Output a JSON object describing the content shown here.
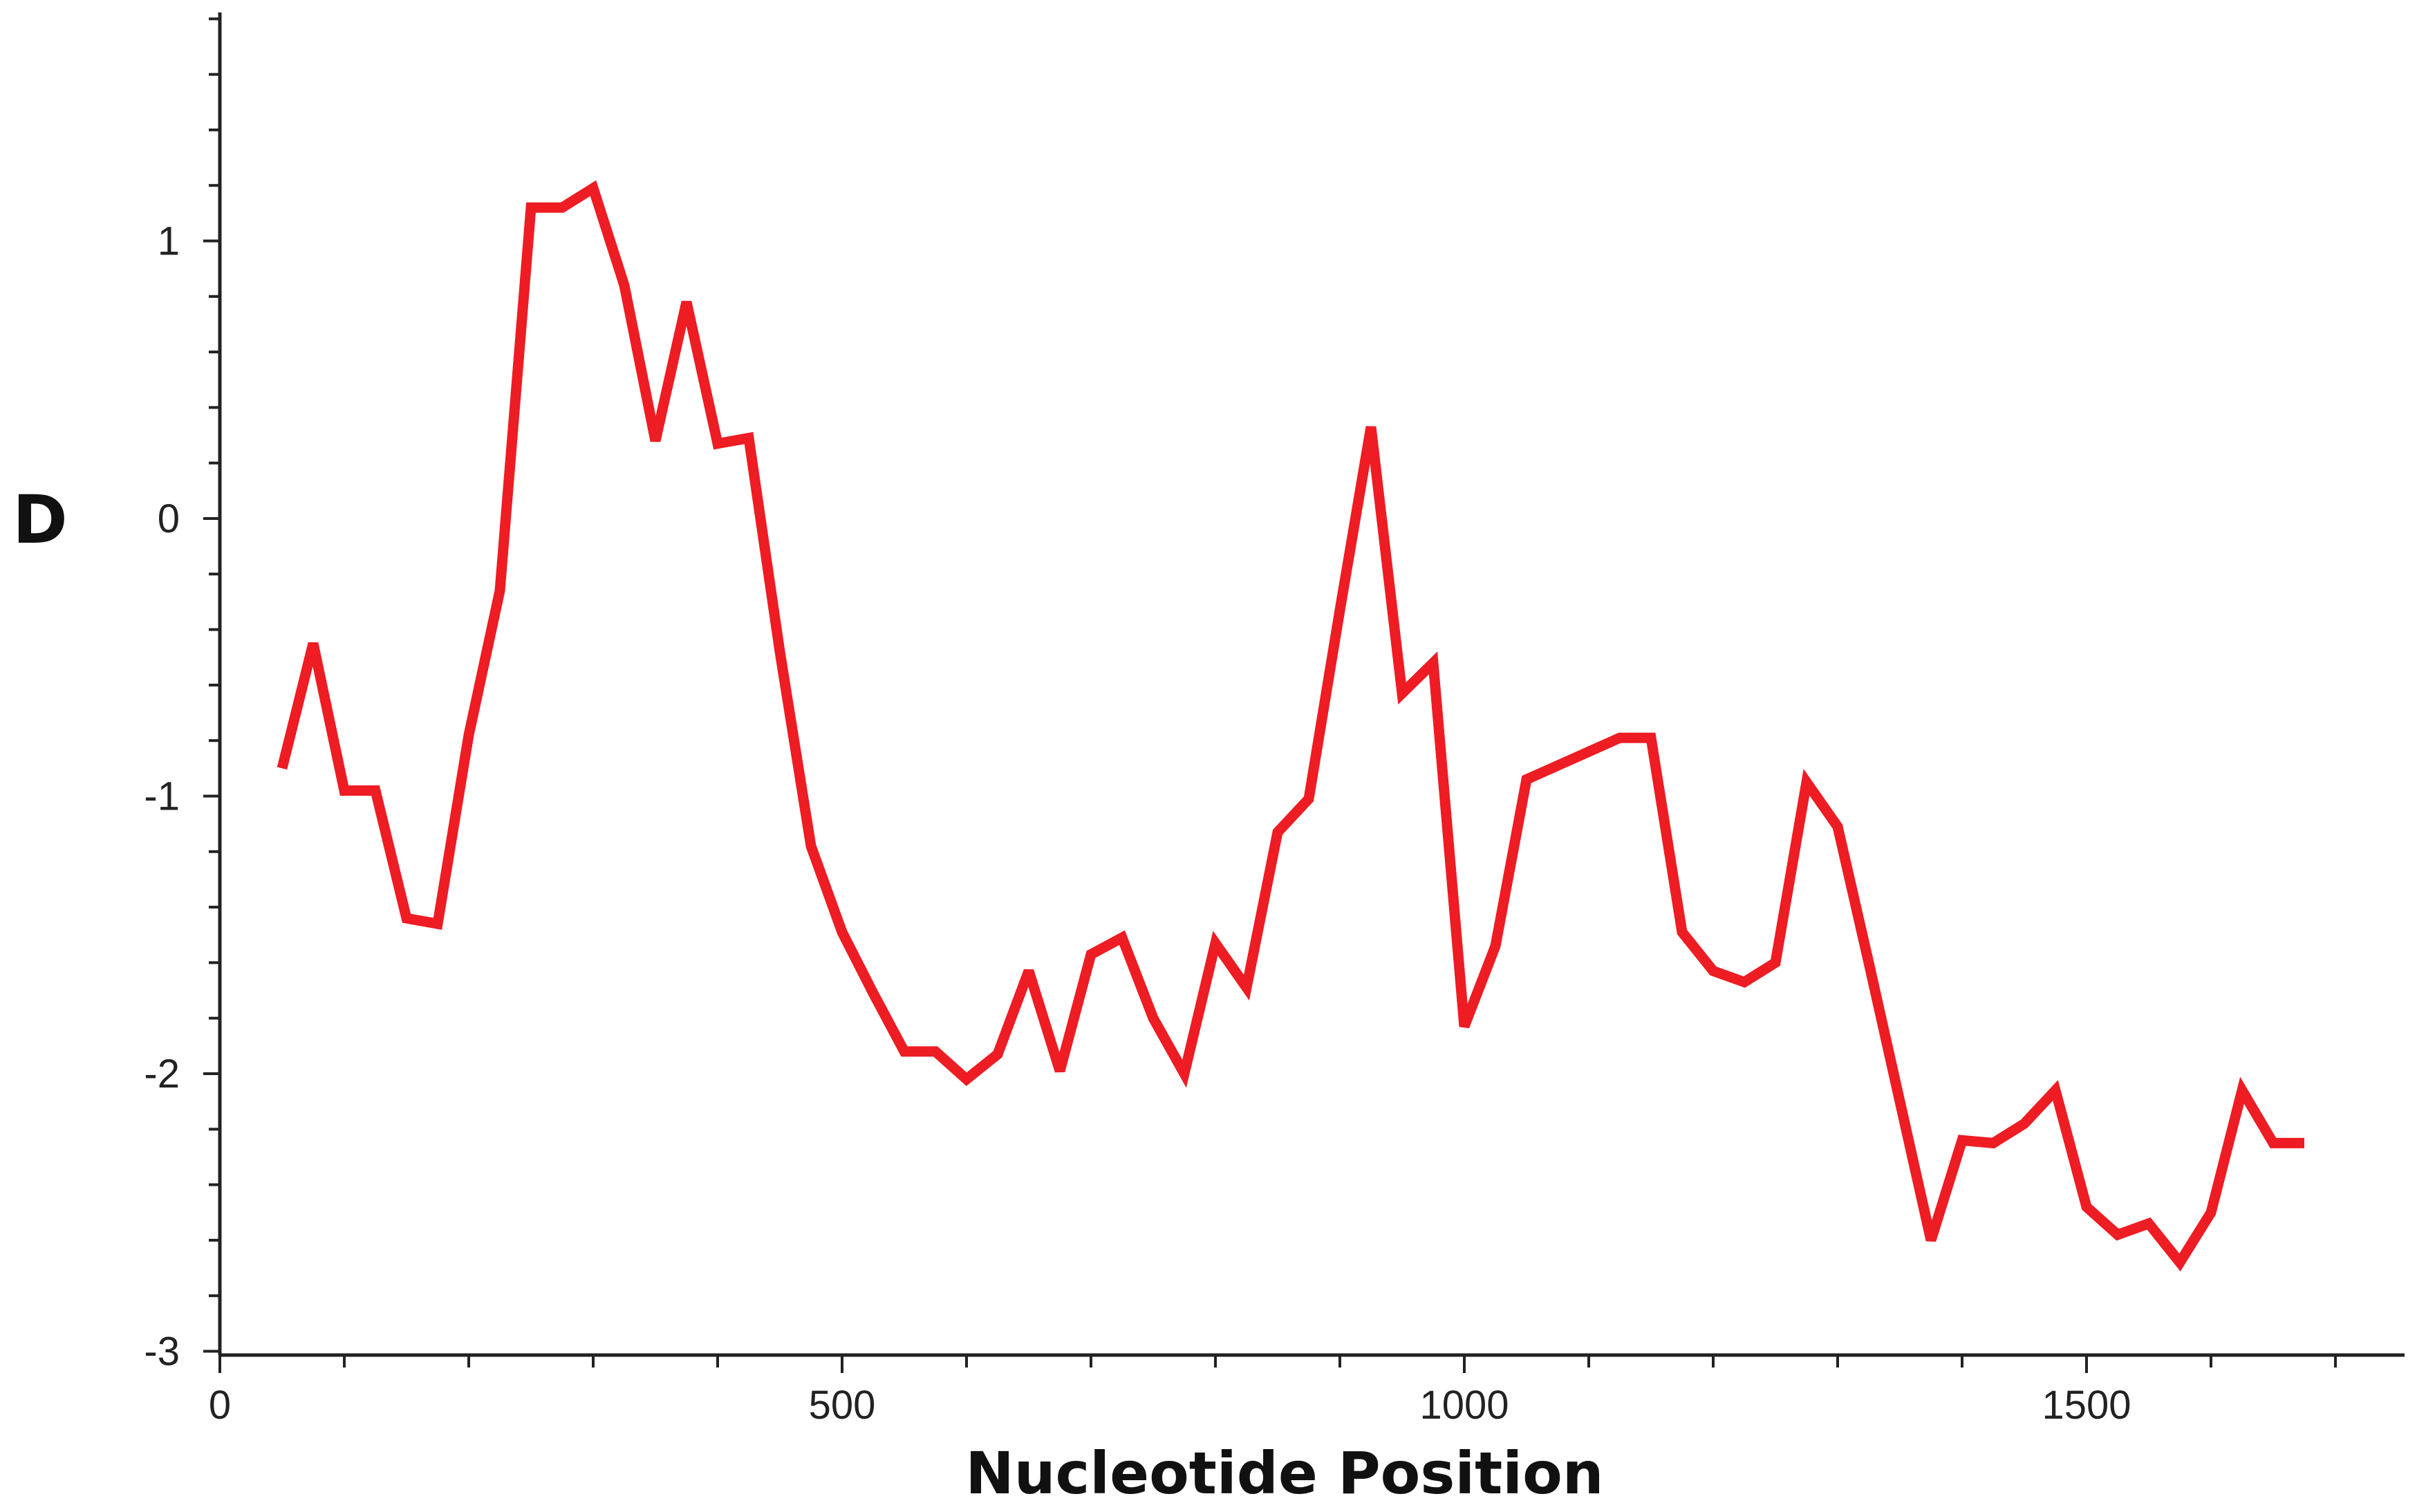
{
  "chart_data": {
    "type": "line",
    "title": "",
    "xlabel": "Nucleotide Position",
    "ylabel": "D",
    "xlim": [
      0,
      1760
    ],
    "ylim": [
      -3,
      1.8
    ],
    "x_ticks": [
      0,
      500,
      1000,
      1500
    ],
    "x_tick_labels": [
      "0",
      "500",
      "1000",
      "1500"
    ],
    "x_minor_step": 100,
    "y_ticks": [
      1,
      0,
      -1,
      -2,
      -3
    ],
    "y_tick_labels": [
      "1",
      "0",
      "-1",
      "-2",
      "-3"
    ],
    "y_minor_step": 0.2,
    "grid": false,
    "legend": "none",
    "line_color": "#ee1c23",
    "series": [
      {
        "x": [
          50,
          75,
          100,
          125,
          150,
          175,
          200,
          225,
          250,
          275,
          300,
          325,
          350,
          375,
          400,
          425,
          450,
          475,
          500,
          525,
          550,
          575,
          600,
          625,
          650,
          675,
          700,
          725,
          750,
          775,
          800,
          825,
          850,
          875,
          900,
          925,
          950,
          975,
          1000,
          1025,
          1050,
          1125,
          1150,
          1175,
          1200,
          1225,
          1250,
          1275,
          1300,
          1325,
          1350,
          1375,
          1400,
          1425,
          1450,
          1475,
          1500,
          1525,
          1550,
          1575,
          1600,
          1625,
          1650,
          1675
        ],
        "y": [
          -0.9,
          -0.45,
          -0.98,
          -0.98,
          -1.44,
          -1.46,
          -0.78,
          -0.26,
          1.12,
          1.12,
          1.19,
          0.84,
          0.28,
          0.78,
          0.27,
          0.29,
          -0.48,
          -1.18,
          -1.49,
          -1.71,
          -1.92,
          -1.92,
          -2.02,
          -1.93,
          -1.63,
          -1.99,
          -1.57,
          -1.51,
          -1.8,
          -2.0,
          -1.53,
          -1.69,
          -1.13,
          -1.01,
          -0.33,
          0.33,
          -0.63,
          -0.52,
          -1.83,
          -1.54,
          -0.94,
          -0.79,
          -0.79,
          -1.49,
          -1.63,
          -1.67,
          -1.6,
          -0.95,
          -1.11,
          -1.6,
          -2.1,
          -2.6,
          -2.24,
          -2.25,
          -2.18,
          -2.06,
          -2.48,
          -2.58,
          -2.54,
          -2.68,
          -2.5,
          -2.06,
          -2.25,
          -2.25
        ]
      }
    ]
  }
}
